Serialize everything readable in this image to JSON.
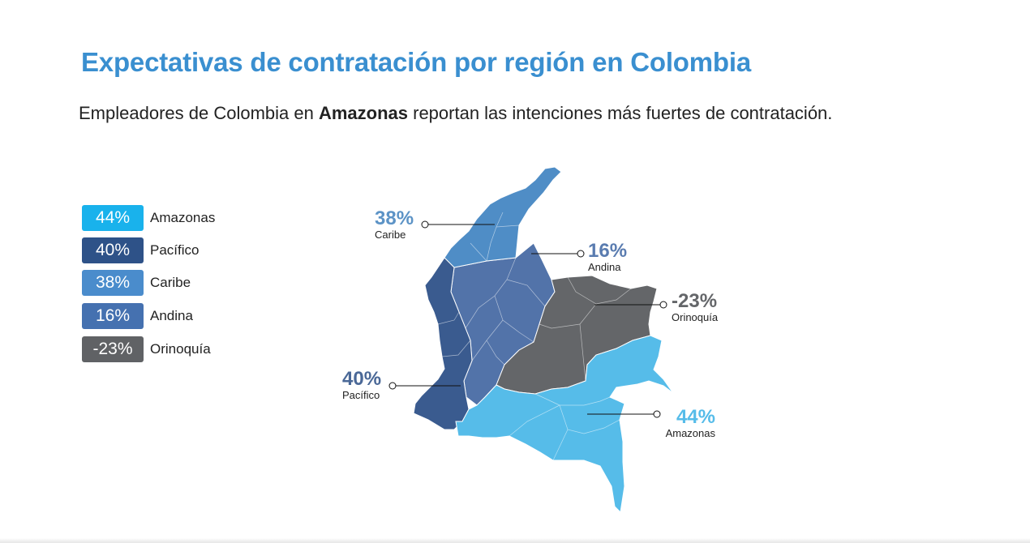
{
  "header": {
    "title": "Expectativas de contratación por región en Colombia",
    "subtitle_before": "Empleadores de Colombia en ",
    "subtitle_bold": "Amazonas",
    "subtitle_after": " reportan las intenciones más fuertes de contratación."
  },
  "regions": [
    {
      "id": "amazonas",
      "name": "Amazonas",
      "value": "44%",
      "color": "#56bce9",
      "callout_color": "#56bce9"
    },
    {
      "id": "pacifico",
      "name": "Pacífico",
      "value": "40%",
      "color": "#3a5b8f",
      "callout_color": "#4a6897"
    },
    {
      "id": "caribe",
      "name": "Caribe",
      "value": "38%",
      "color": "#4f8dc6",
      "callout_color": "#5c93c6"
    },
    {
      "id": "andina",
      "name": "Andina",
      "value": "16%",
      "color": "#5273a9",
      "callout_color": "#5a7cb0"
    },
    {
      "id": "orinoquia",
      "name": "Orinoquía",
      "value": "-23%",
      "color": "#646669",
      "callout_color": "#646669"
    }
  ],
  "legend": [
    {
      "value": "44%",
      "label": "Amazonas",
      "color": "#19b2ec"
    },
    {
      "value": "40%",
      "label": "Pacífico",
      "color": "#2e5288"
    },
    {
      "value": "38%",
      "label": "Caribe",
      "color": "#4a8ccc"
    },
    {
      "value": "16%",
      "label": "Andina",
      "color": "#4571b0"
    },
    {
      "value": "-23%",
      "label": "Orinoquía",
      "color": "#606265"
    }
  ]
}
